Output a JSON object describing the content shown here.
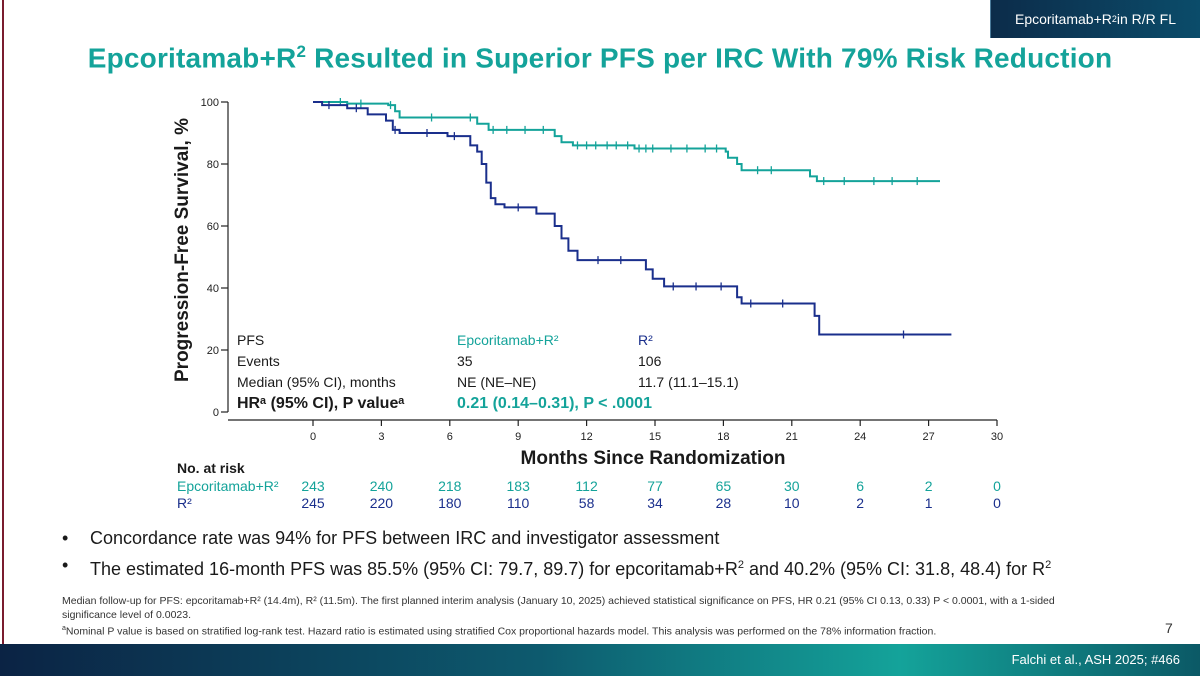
{
  "header": {
    "tag_prefix": "Epcoritamab+R",
    "tag_sup": "2",
    "tag_suffix": " in R/R FL"
  },
  "title": {
    "prefix": "Epcoritamab+R",
    "sup": "2",
    "suffix": " Resulted in Superior PFS per IRC With 79% Risk Reduction"
  },
  "colors": {
    "epco": "#14a39a",
    "r2": "#1a2f8c",
    "title": "#14a39a",
    "accent_rule": "#7a1c2e"
  },
  "chart_data": {
    "type": "line",
    "chart_subtype": "kaplan-meier step curve with censor ticks",
    "ylabel": "Progression-Free Survival, %",
    "xlabel": "Months Since Randomization",
    "xlim": [
      0,
      30
    ],
    "ylim": [
      0,
      100
    ],
    "x_ticks": [
      0,
      3,
      6,
      9,
      12,
      15,
      18,
      21,
      24,
      27,
      30
    ],
    "y_ticks": [
      0,
      20,
      40,
      60,
      80,
      100
    ],
    "series": [
      {
        "name": "Epcoritamab+R²",
        "color": "#14a39a",
        "points": [
          [
            0,
            100
          ],
          [
            1.5,
            100
          ],
          [
            1.5,
            99.5
          ],
          [
            3.3,
            99.5
          ],
          [
            3.3,
            99
          ],
          [
            3.6,
            99
          ],
          [
            3.6,
            97
          ],
          [
            3.8,
            97
          ],
          [
            3.8,
            95
          ],
          [
            7.2,
            95
          ],
          [
            7.2,
            93
          ],
          [
            7.7,
            93
          ],
          [
            7.7,
            91
          ],
          [
            10.6,
            91
          ],
          [
            10.6,
            89
          ],
          [
            10.9,
            89
          ],
          [
            10.9,
            87
          ],
          [
            11.4,
            87
          ],
          [
            11.4,
            86
          ],
          [
            14.1,
            86
          ],
          [
            14.1,
            85
          ],
          [
            18.1,
            85
          ],
          [
            18.1,
            84
          ],
          [
            18.2,
            84
          ],
          [
            18.2,
            82
          ],
          [
            18.6,
            82
          ],
          [
            18.6,
            80
          ],
          [
            18.8,
            80
          ],
          [
            18.8,
            78
          ],
          [
            21.8,
            78
          ],
          [
            21.8,
            76
          ],
          [
            22.1,
            76
          ],
          [
            22.1,
            74.5
          ],
          [
            27.5,
            74.5
          ]
        ],
        "censor_x": [
          1.2,
          2.1,
          3.4,
          5.2,
          6.9,
          7.9,
          8.5,
          9.3,
          10.1,
          11.6,
          12.0,
          12.4,
          12.9,
          13.3,
          13.8,
          14.3,
          14.6,
          14.9,
          15.7,
          16.4,
          17.2,
          17.7,
          19.5,
          20.1,
          22.4,
          23.3,
          24.6,
          25.4,
          26.5
        ]
      },
      {
        "name": "R²",
        "color": "#1a2f8c",
        "points": [
          [
            0,
            100
          ],
          [
            0.4,
            100
          ],
          [
            0.4,
            99
          ],
          [
            1.5,
            99
          ],
          [
            1.5,
            98
          ],
          [
            2.4,
            98
          ],
          [
            2.4,
            96
          ],
          [
            3.2,
            96
          ],
          [
            3.2,
            94
          ],
          [
            3.5,
            94
          ],
          [
            3.5,
            91
          ],
          [
            3.8,
            91
          ],
          [
            3.8,
            90
          ],
          [
            5.9,
            90
          ],
          [
            5.9,
            89
          ],
          [
            6.9,
            89
          ],
          [
            6.9,
            86
          ],
          [
            7.2,
            86
          ],
          [
            7.2,
            84
          ],
          [
            7.4,
            84
          ],
          [
            7.4,
            80
          ],
          [
            7.6,
            80
          ],
          [
            7.6,
            74
          ],
          [
            7.8,
            74
          ],
          [
            7.8,
            69
          ],
          [
            8.0,
            69
          ],
          [
            8.0,
            67
          ],
          [
            8.4,
            67
          ],
          [
            8.4,
            66
          ],
          [
            9.8,
            66
          ],
          [
            9.8,
            64
          ],
          [
            10.6,
            64
          ],
          [
            10.6,
            60
          ],
          [
            10.9,
            60
          ],
          [
            10.9,
            56
          ],
          [
            11.2,
            56
          ],
          [
            11.2,
            52
          ],
          [
            11.6,
            52
          ],
          [
            11.6,
            49
          ],
          [
            14.6,
            49
          ],
          [
            14.6,
            46
          ],
          [
            14.9,
            46
          ],
          [
            14.9,
            43
          ],
          [
            15.4,
            43
          ],
          [
            15.4,
            40.5
          ],
          [
            18.6,
            40.5
          ],
          [
            18.6,
            37
          ],
          [
            18.8,
            37
          ],
          [
            18.8,
            35
          ],
          [
            22.0,
            35
          ],
          [
            22.0,
            31
          ],
          [
            22.2,
            31
          ],
          [
            22.2,
            25
          ],
          [
            28.0,
            25
          ]
        ],
        "censor_x": [
          0.7,
          1.9,
          3.6,
          5.0,
          6.2,
          9.0,
          12.5,
          13.5,
          15.8,
          16.8,
          17.9,
          19.2,
          20.6,
          25.9
        ]
      }
    ],
    "stats_table": {
      "rows": [
        {
          "label": "PFS",
          "epco": "Epcoritamab+R²",
          "r2": "R²"
        },
        {
          "label": "Events",
          "epco": "35",
          "r2": "106"
        },
        {
          "label": "Median (95% CI), months",
          "epco": "NE (NE–NE)",
          "r2": "11.7 (11.1–15.1)"
        }
      ],
      "hr_label": "HRᵃ (95% CI), P valueᵃ",
      "hr_value": "0.21 (0.14–0.31), P < .0001"
    },
    "at_risk": {
      "title": "No. at risk",
      "rows": [
        {
          "name": "Epcoritamab+R²",
          "values": [
            243,
            240,
            218,
            183,
            112,
            77,
            65,
            30,
            6,
            2,
            0
          ]
        },
        {
          "name": "R²",
          "values": [
            245,
            220,
            180,
            110,
            58,
            34,
            28,
            10,
            2,
            1,
            0
          ]
        }
      ]
    }
  },
  "bullets": [
    {
      "text": "Concordance rate was 94% for PFS between IRC and investigator assessment"
    },
    {
      "pre": "The estimated 16-month PFS was 85.5% (95% CI: 79.7, 89.7) for epcoritamab+R",
      "sup1": "2",
      "mid": " and 40.2% (95% CI: 31.8, 48.4) for R",
      "sup2": "2"
    }
  ],
  "footnotes": {
    "line1": "Median follow-up for PFS: epcoritamab+R² (14.4m), R² (11.5m). The first planned interim analysis (January 10, 2025) achieved statistical significance on PFS, HR 0.21 (95% CI 0.13, 0.33) P < 0.0001, with a 1-sided significance level of 0.0023.",
    "line2_sup": "a",
    "line2": "Nominal P value is based on stratified log-rank test. Hazard ratio is estimated using stratified Cox proportional hazards model. This analysis was performed on the 78% information fraction."
  },
  "page_number": "7",
  "citation": "Falchi et al., ASH 2025; #466"
}
